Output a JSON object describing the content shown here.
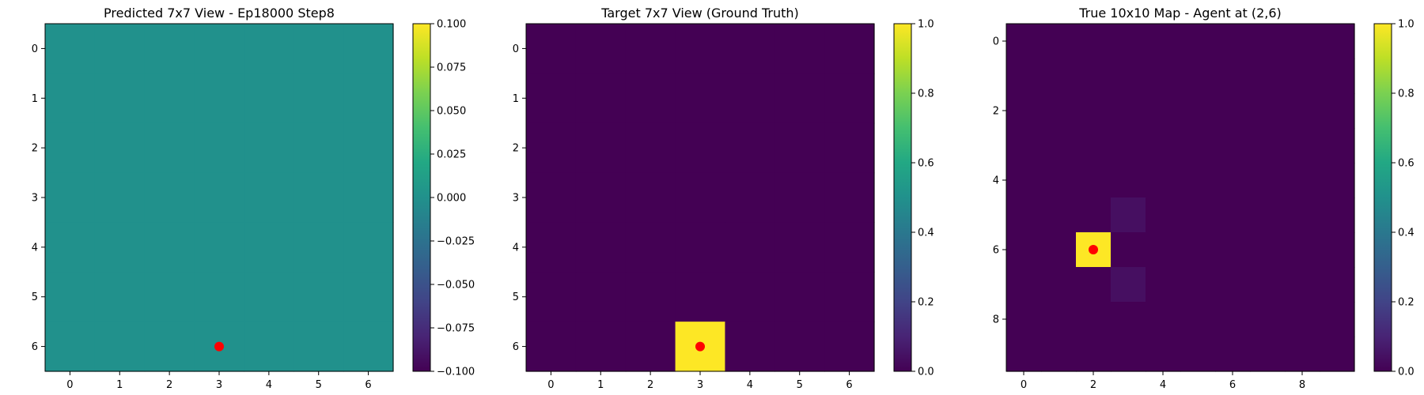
{
  "chart_data": [
    {
      "type": "heatmap",
      "title": "Predicted 7x7 View - Ep18000 Step8",
      "grid_size": 7,
      "xticks": [
        0,
        1,
        2,
        3,
        4,
        5,
        6
      ],
      "yticks": [
        0,
        1,
        2,
        3,
        4,
        5,
        6
      ],
      "value_range": [
        -0.1,
        0.1
      ],
      "colorbar_ticks": [
        "0.100",
        "0.075",
        "0.050",
        "0.025",
        "0.000",
        "−0.025",
        "−0.050",
        "−0.075",
        "−0.100"
      ],
      "colorbar_tick_values": [
        0.1,
        0.075,
        0.05,
        0.025,
        0.0,
        -0.025,
        -0.05,
        -0.075,
        -0.1
      ],
      "default_value": 0.0,
      "cells": [],
      "marker": {
        "x": 3,
        "y": 6,
        "color": "#ff0000"
      }
    },
    {
      "type": "heatmap",
      "title": "Target 7x7 View (Ground Truth)",
      "grid_size": 7,
      "xticks": [
        0,
        1,
        2,
        3,
        4,
        5,
        6
      ],
      "yticks": [
        0,
        1,
        2,
        3,
        4,
        5,
        6
      ],
      "value_range": [
        0,
        1
      ],
      "colorbar_ticks": [
        "1.0",
        "0.8",
        "0.6",
        "0.4",
        "0.2",
        "0.0"
      ],
      "colorbar_tick_values": [
        1.0,
        0.8,
        0.6,
        0.4,
        0.2,
        0.0
      ],
      "default_value": 0.0,
      "cells": [
        {
          "x": 3,
          "y": 6,
          "value": 1.0
        }
      ],
      "marker": {
        "x": 3,
        "y": 6,
        "color": "#ff0000"
      }
    },
    {
      "type": "heatmap",
      "title": "True 10x10 Map - Agent at (2,6)",
      "grid_size": 10,
      "xticks": [
        0,
        2,
        4,
        6,
        8
      ],
      "yticks": [
        0,
        2,
        4,
        6,
        8
      ],
      "value_range": [
        0,
        1
      ],
      "colorbar_ticks": [
        "1.0",
        "0.8",
        "0.6",
        "0.4",
        "0.2",
        "0.0"
      ],
      "colorbar_tick_values": [
        1.0,
        0.8,
        0.6,
        0.4,
        0.2,
        0.0
      ],
      "default_value": 0.0,
      "cells": [
        {
          "x": 2,
          "y": 6,
          "value": 1.0
        },
        {
          "x": 3,
          "y": 5,
          "value": 0.04
        },
        {
          "x": 3,
          "y": 7,
          "value": 0.04
        }
      ],
      "marker": {
        "x": 2,
        "y": 6,
        "color": "#ff0000"
      }
    }
  ]
}
